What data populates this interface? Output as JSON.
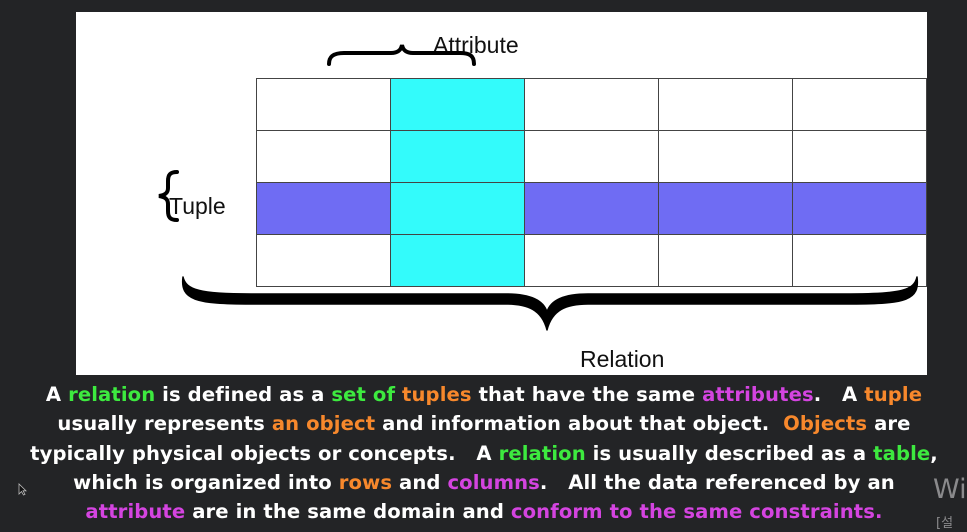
{
  "diagram": {
    "attribute_label": "Attribute",
    "tuple_label": "Tuple",
    "relation_label": "Relation",
    "table": {
      "rows": 4,
      "cols": 5,
      "highlighted_row": 2,
      "highlighted_col": 1
    },
    "colors": {
      "attribute_highlight": "#33fbfb",
      "tuple_highlight": "#6f6cf3",
      "background": "#ffffff",
      "brace": "#000000"
    }
  },
  "caption": {
    "lines": [
      [
        {
          "t": "A ",
          "c": "white"
        },
        {
          "t": "relation",
          "c": "green"
        },
        {
          "t": " is defined as a ",
          "c": "white"
        },
        {
          "t": "set of ",
          "c": "green"
        },
        {
          "t": "tuples",
          "c": "orange"
        },
        {
          "t": " that have the same ",
          "c": "white"
        },
        {
          "t": "attributes",
          "c": "magenta"
        },
        {
          "t": ".   A ",
          "c": "white"
        },
        {
          "t": "tuple",
          "c": "orange"
        }
      ],
      [
        {
          "t": "usually represents ",
          "c": "white"
        },
        {
          "t": "an object",
          "c": "orange"
        },
        {
          "t": " and information about that object.  ",
          "c": "white"
        },
        {
          "t": "Objects",
          "c": "orange"
        },
        {
          "t": " are",
          "c": "white"
        }
      ],
      [
        {
          "t": "typically physical objects or concepts.   A ",
          "c": "white"
        },
        {
          "t": "relation",
          "c": "green"
        },
        {
          "t": " is usually described as a ",
          "c": "white"
        },
        {
          "t": "table",
          "c": "green"
        },
        {
          "t": ",",
          "c": "white"
        }
      ],
      [
        {
          "t": "which is organized into ",
          "c": "white"
        },
        {
          "t": "rows",
          "c": "orange"
        },
        {
          "t": " and ",
          "c": "white"
        },
        {
          "t": "columns",
          "c": "magenta"
        },
        {
          "t": ".   All the data referenced by an",
          "c": "white"
        }
      ],
      [
        {
          "t": "attribute",
          "c": "magenta"
        },
        {
          "t": " are in the same domain and ",
          "c": "white"
        },
        {
          "t": "conform to the same constraints.",
          "c": "magenta"
        }
      ]
    ]
  },
  "overlay": {
    "watermark_text": "Wi",
    "watermark_sub": "[설",
    "cursor_icon": "mouse-pointer-icon"
  }
}
